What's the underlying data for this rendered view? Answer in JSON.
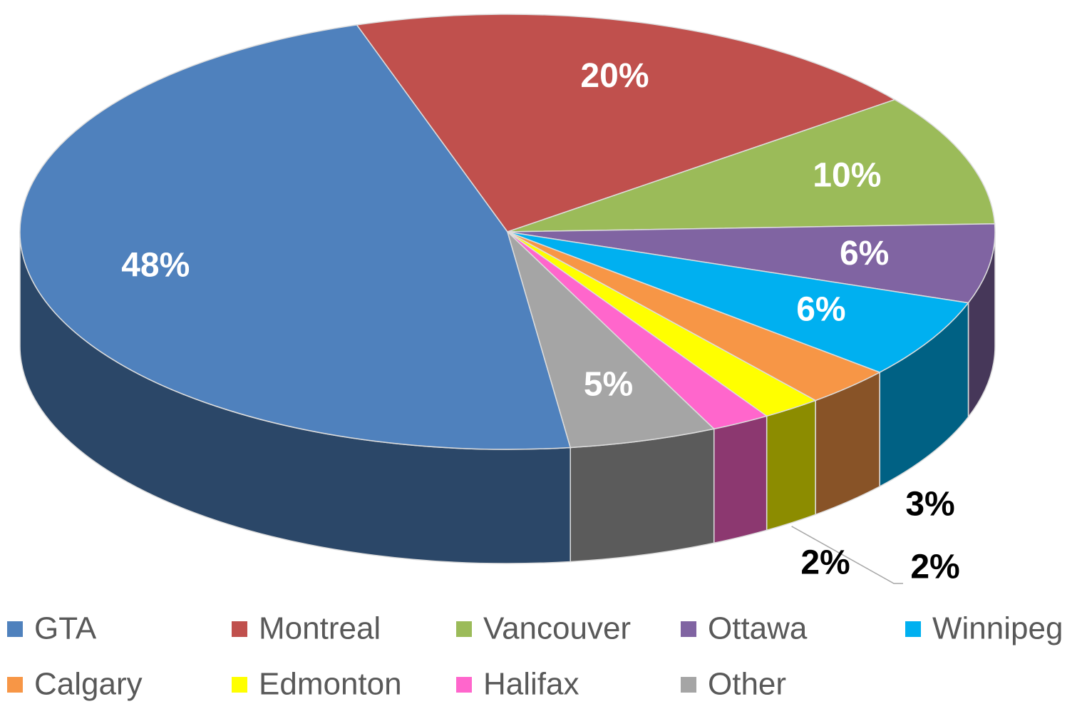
{
  "chart_data": {
    "type": "pie3d",
    "categories": [
      "GTA",
      "Montreal",
      "Vancouver",
      "Ottawa",
      "Winnipeg",
      "Calgary",
      "Edmonton",
      "Halifax",
      "Other"
    ],
    "values": [
      48,
      20,
      10,
      6,
      6,
      3,
      2,
      2,
      5
    ],
    "value_labels": [
      "48%",
      "20%",
      "10%",
      "6%",
      "6%",
      "3%",
      "2%",
      "2%",
      "5%"
    ],
    "colors": [
      "#4f81bd",
      "#c0504d",
      "#9bbb59",
      "#8064a2",
      "#00b0f0",
      "#f79646",
      "#ffff00",
      "#ff66cc",
      "#a5a5a5"
    ],
    "legend": "bottom"
  }
}
